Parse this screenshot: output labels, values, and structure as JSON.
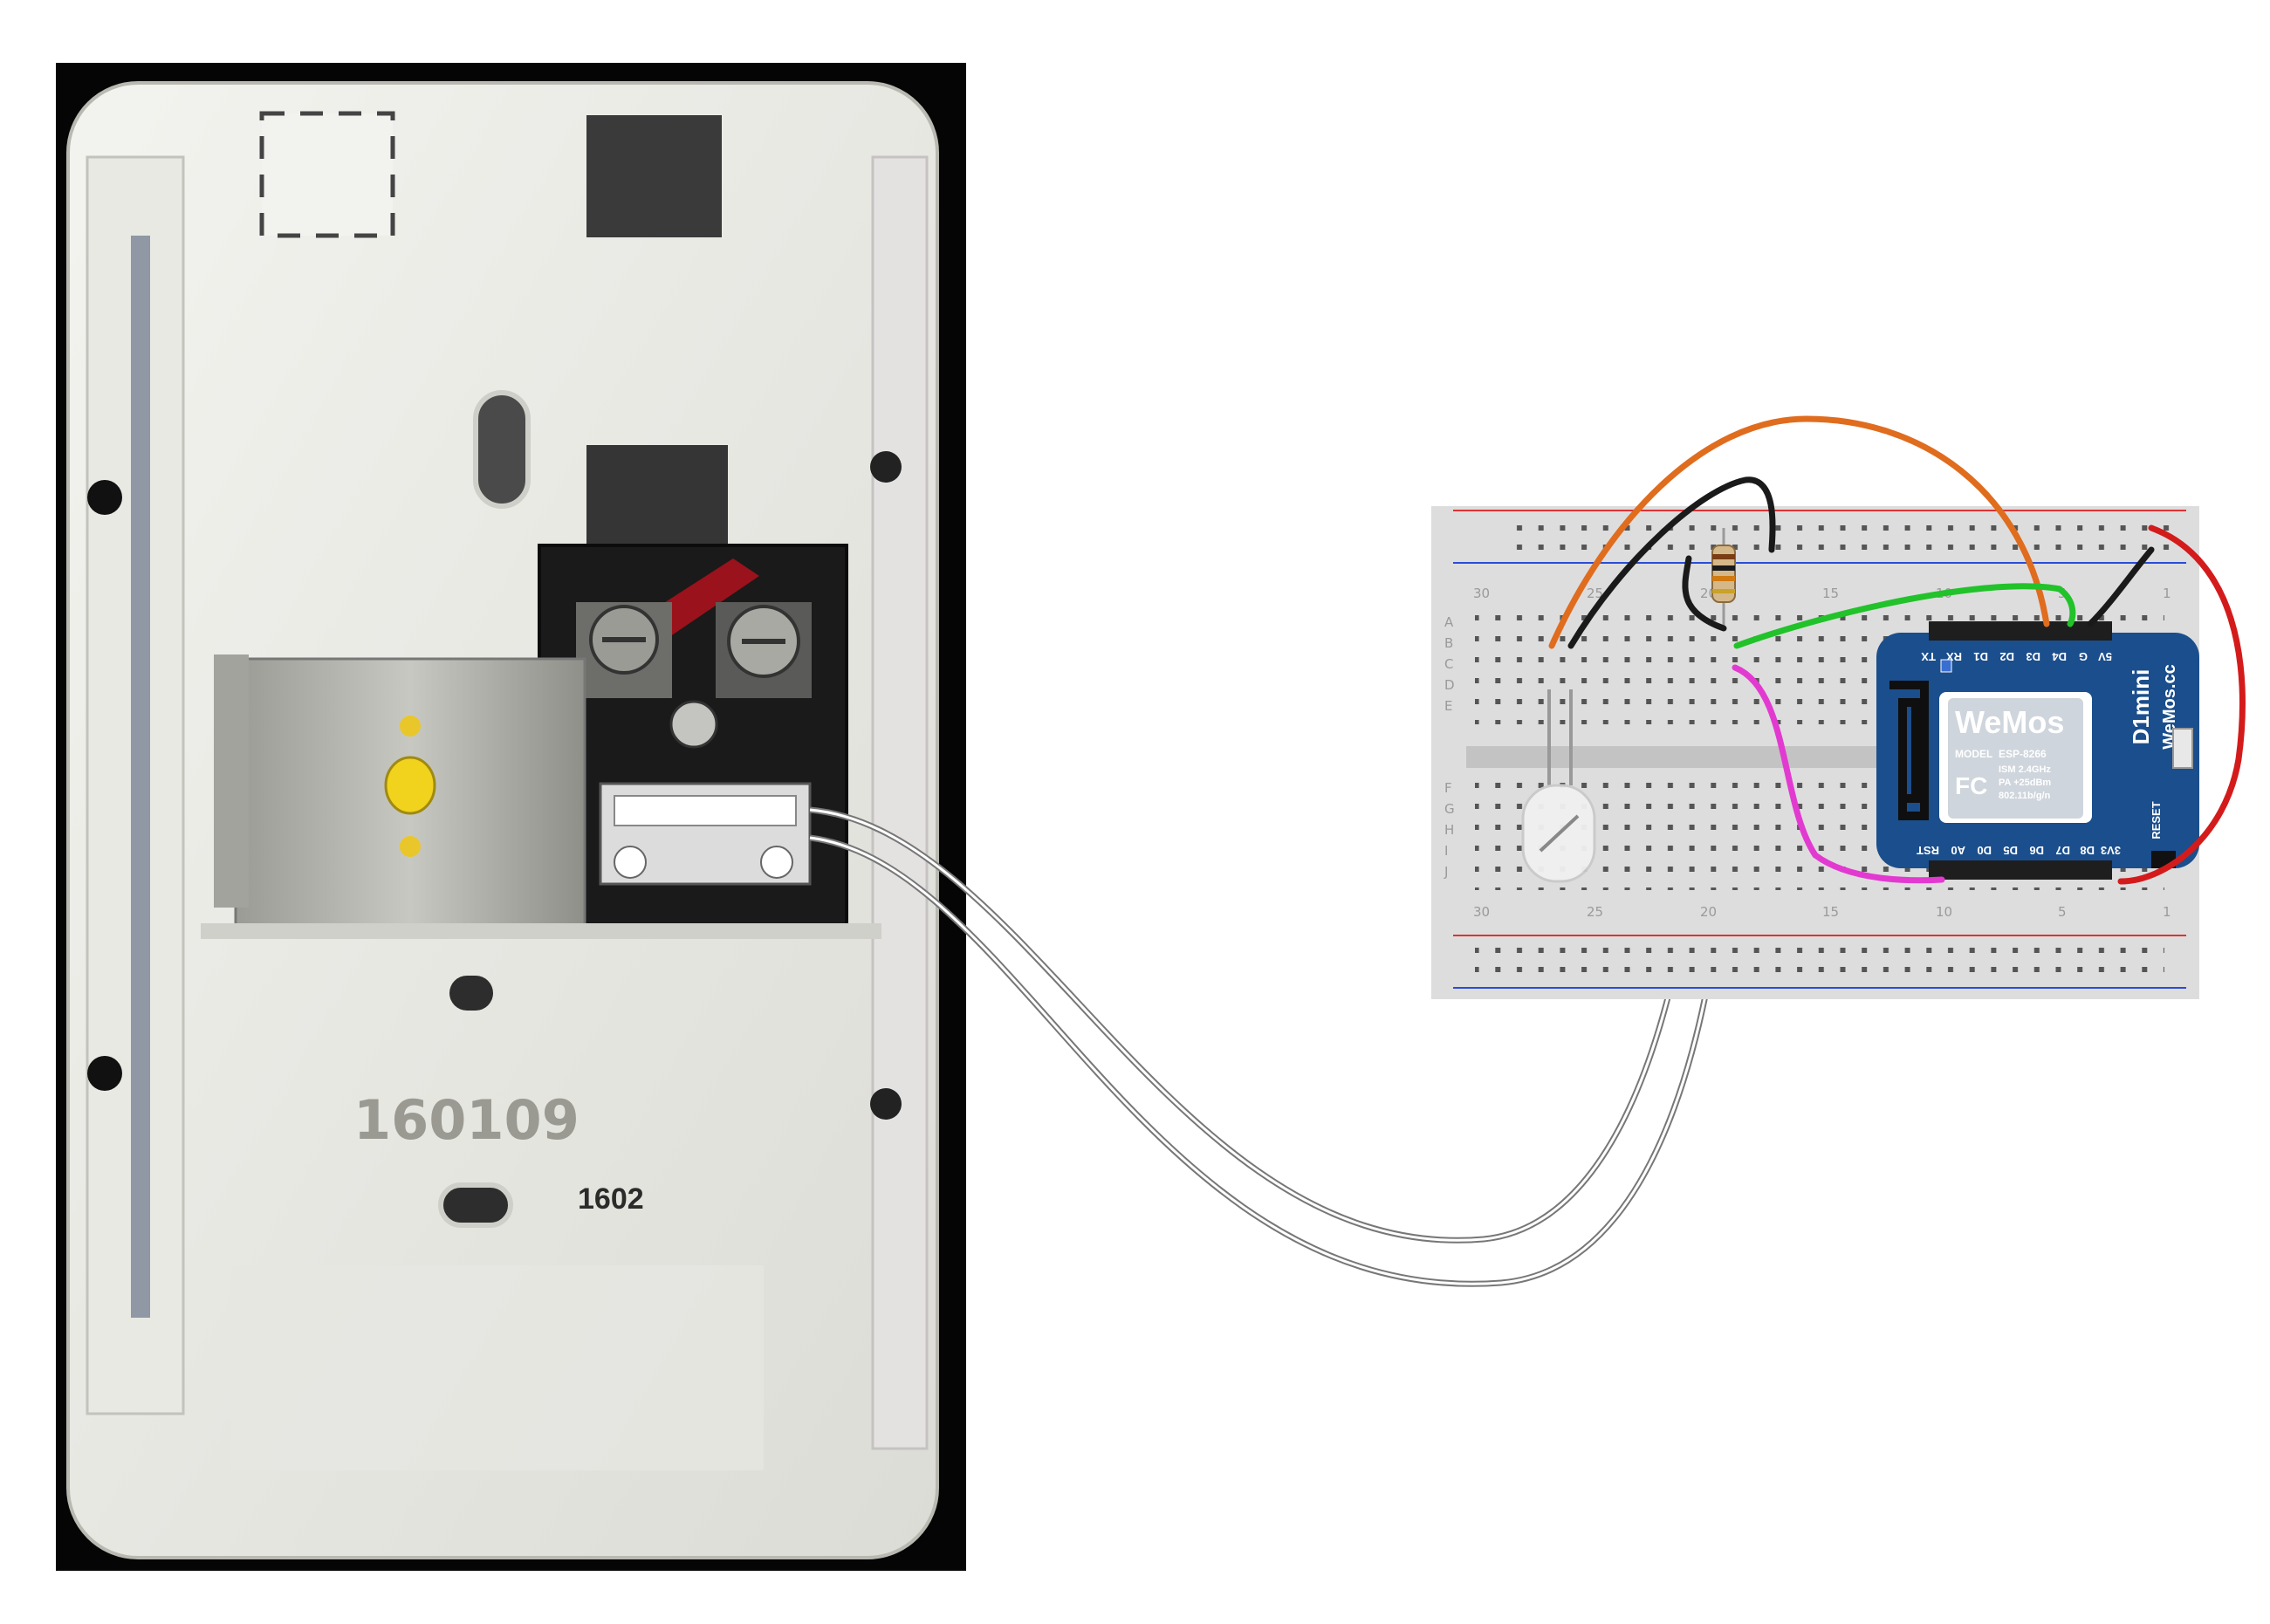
{
  "doorbell_box": {
    "molded_code": "160109",
    "stamped_code": "1602"
  },
  "breadboard": {
    "column_numbers_top": [
      "30",
      "25",
      "20",
      "15",
      "10",
      "5",
      "1"
    ],
    "column_numbers_bottom": [
      "30",
      "25",
      "20",
      "15",
      "10",
      "5",
      "1"
    ],
    "row_letters_left": [
      "A",
      "B",
      "C",
      "D",
      "E",
      "F",
      "G",
      "H",
      "I",
      "J"
    ]
  },
  "wemos_board": {
    "top_pins": [
      "TX",
      "RX",
      "D1",
      "D2",
      "D3",
      "D4",
      "G",
      "5V"
    ],
    "bottom_pins": [
      "RST",
      "A0",
      "D0",
      "D5",
      "D6",
      "D7",
      "D8",
      "3V3"
    ],
    "brand_logo": "WeMos",
    "model_label": "MODEL",
    "model_value": "ESP-8266",
    "spec_lines": [
      "ISM 2.4GHz",
      "PA +25dBm",
      "802.11b/g/n"
    ],
    "side_name": "D1mini",
    "side_site": "WeMos.cc",
    "reset_label": "RESET",
    "fcc_mark": "FC"
  },
  "colors": {
    "wire_orange": "#e06c1e",
    "wire_black": "#1a1a1a",
    "wire_green": "#22c22a",
    "wire_magenta": "#e23ad0",
    "wire_red": "#d41b1b",
    "board_blue": "#1b4e8c",
    "rail_red": "#d33",
    "rail_blue": "#2a4dd6"
  }
}
